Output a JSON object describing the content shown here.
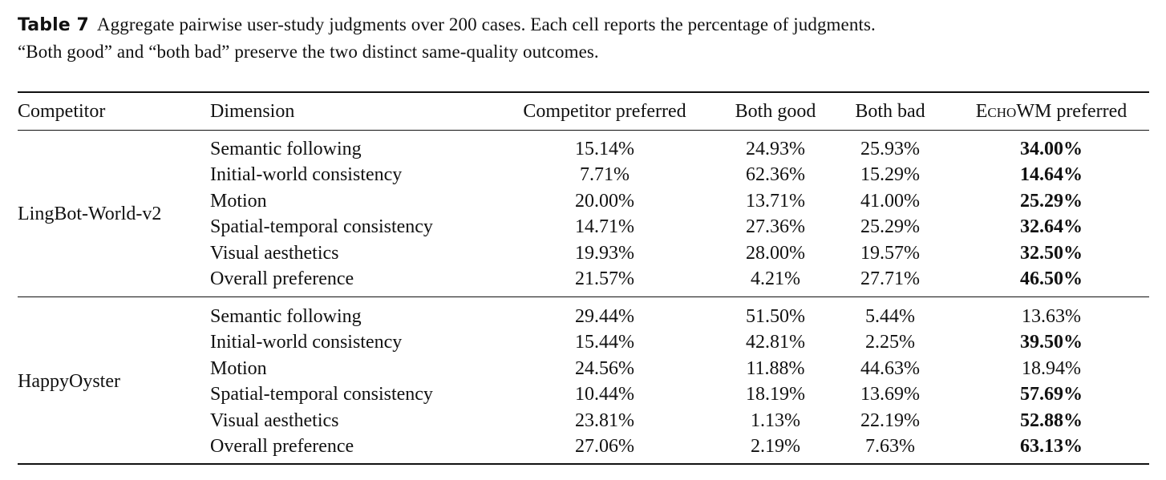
{
  "caption": {
    "label": "Table 7",
    "line1": "Aggregate pairwise user-study judgments over 200 cases.  Each cell reports the percentage of judgments.",
    "line2": "“Both good” and “both bad” preserve the two distinct same-quality outcomes."
  },
  "table": {
    "headers": {
      "competitor": "Competitor",
      "dimension": "Dimension",
      "competitor_preferred": "Competitor preferred",
      "both_good": "Both good",
      "both_bad": "Both bad",
      "echowm_prefix": "Echo",
      "echowm_suffix": "WM preferred"
    },
    "groups": [
      {
        "competitor": "LingBot-World-v2",
        "rows": [
          {
            "dimension": "Semantic following",
            "competitor_preferred": "15.14%",
            "both_good": "24.93%",
            "both_bad": "25.93%",
            "echowm_preferred": "34.00%",
            "bold": true
          },
          {
            "dimension": "Initial-world consistency",
            "competitor_preferred": "7.71%",
            "both_good": "62.36%",
            "both_bad": "15.29%",
            "echowm_preferred": "14.64%",
            "bold": true
          },
          {
            "dimension": "Motion",
            "competitor_preferred": "20.00%",
            "both_good": "13.71%",
            "both_bad": "41.00%",
            "echowm_preferred": "25.29%",
            "bold": true
          },
          {
            "dimension": "Spatial-temporal consistency",
            "competitor_preferred": "14.71%",
            "both_good": "27.36%",
            "both_bad": "25.29%",
            "echowm_preferred": "32.64%",
            "bold": true
          },
          {
            "dimension": "Visual aesthetics",
            "competitor_preferred": "19.93%",
            "both_good": "28.00%",
            "both_bad": "19.57%",
            "echowm_preferred": "32.50%",
            "bold": true
          },
          {
            "dimension": "Overall preference",
            "competitor_preferred": "21.57%",
            "both_good": "4.21%",
            "both_bad": "27.71%",
            "echowm_preferred": "46.50%",
            "bold": true
          }
        ]
      },
      {
        "competitor": "HappyOyster",
        "rows": [
          {
            "dimension": "Semantic following",
            "competitor_preferred": "29.44%",
            "both_good": "51.50%",
            "both_bad": "5.44%",
            "echowm_preferred": "13.63%",
            "bold": false
          },
          {
            "dimension": "Initial-world consistency",
            "competitor_preferred": "15.44%",
            "both_good": "42.81%",
            "both_bad": "2.25%",
            "echowm_preferred": "39.50%",
            "bold": true
          },
          {
            "dimension": "Motion",
            "competitor_preferred": "24.56%",
            "both_good": "11.88%",
            "both_bad": "44.63%",
            "echowm_preferred": "18.94%",
            "bold": false
          },
          {
            "dimension": "Spatial-temporal consistency",
            "competitor_preferred": "10.44%",
            "both_good": "18.19%",
            "both_bad": "13.69%",
            "echowm_preferred": "57.69%",
            "bold": true
          },
          {
            "dimension": "Visual aesthetics",
            "competitor_preferred": "23.81%",
            "both_good": "1.13%",
            "both_bad": "22.19%",
            "echowm_preferred": "52.88%",
            "bold": true
          },
          {
            "dimension": "Overall preference",
            "competitor_preferred": "27.06%",
            "both_good": "2.19%",
            "both_bad": "7.63%",
            "echowm_preferred": "63.13%",
            "bold": true
          }
        ]
      }
    ]
  }
}
